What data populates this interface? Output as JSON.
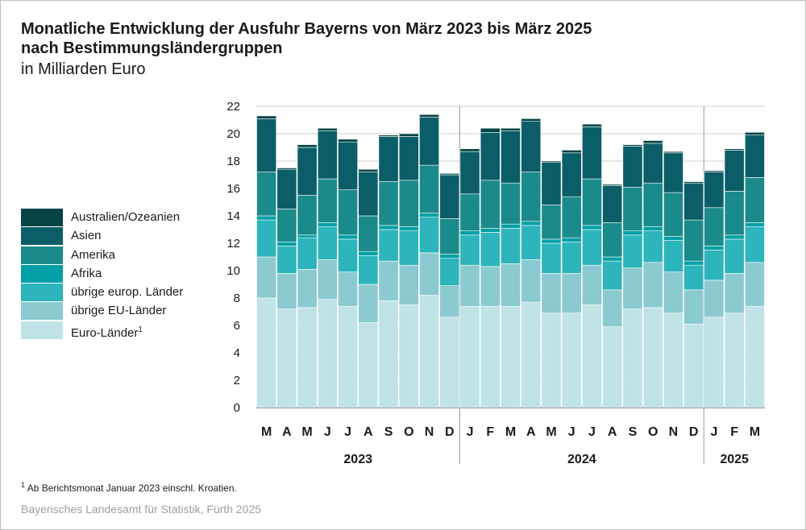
{
  "title_line1": "Monatliche Entwicklung der Ausfuhr Bayerns von März 2023 bis März 2025",
  "title_line2": "nach Bestimmungsländergruppen",
  "subtitle": "in Milliarden Euro",
  "footnote": {
    "marker": "1",
    "text": "Ab Berichtsmonat Januar 2023 einschl. Kroatien."
  },
  "source": "Bayerisches Landesamt für Statistik, Fürth 2025",
  "chart_data": {
    "type": "bar",
    "stacked": true,
    "ylim": [
      0,
      22
    ],
    "yticks": [
      "0",
      "2",
      "4",
      "6",
      "8",
      "10",
      "12",
      "14",
      "16",
      "18",
      "20",
      "22"
    ],
    "grid": true,
    "legend_position": "left",
    "categories": [
      "M",
      "A",
      "M",
      "J",
      "J",
      "A",
      "S",
      "O",
      "N",
      "D",
      "J",
      "F",
      "M",
      "A",
      "M",
      "J",
      "J",
      "A",
      "S",
      "O",
      "N",
      "D",
      "J",
      "F",
      "M"
    ],
    "year_groups": [
      {
        "label": "2023",
        "start": 0,
        "end": 9
      },
      {
        "label": "2024",
        "start": 10,
        "end": 21
      },
      {
        "label": "2025",
        "start": 22,
        "end": 24
      }
    ],
    "series": [
      {
        "name": "Euro-Länder",
        "superscript": "1",
        "color": "#bfe3e6",
        "values": [
          8.0,
          7.2,
          7.3,
          7.9,
          7.4,
          6.2,
          7.8,
          7.5,
          8.2,
          6.6,
          7.4,
          7.4,
          7.4,
          7.7,
          6.9,
          6.9,
          7.5,
          5.9,
          7.2,
          7.3,
          6.9,
          6.1,
          6.6,
          6.9,
          7.4
        ]
      },
      {
        "name": "übrige EU-Länder",
        "color": "#8bcad1",
        "values": [
          3.0,
          2.6,
          2.8,
          2.9,
          2.5,
          2.8,
          2.9,
          2.9,
          3.1,
          2.3,
          3.0,
          2.9,
          3.1,
          3.1,
          2.9,
          2.9,
          2.9,
          2.7,
          3.0,
          3.3,
          3.0,
          2.5,
          2.7,
          2.9,
          3.2
        ]
      },
      {
        "name": "übrige europ. Länder",
        "color": "#2db4bc",
        "values": [
          2.7,
          2.0,
          2.3,
          2.4,
          2.4,
          2.1,
          2.3,
          2.5,
          2.6,
          2.0,
          2.2,
          2.5,
          2.6,
          2.5,
          2.2,
          2.3,
          2.6,
          2.1,
          2.4,
          2.3,
          2.3,
          1.8,
          2.2,
          2.5,
          2.6
        ]
      },
      {
        "name": "Afrika",
        "color": "#00a0a6",
        "values": [
          0.3,
          0.3,
          0.2,
          0.3,
          0.3,
          0.3,
          0.3,
          0.3,
          0.3,
          0.3,
          0.3,
          0.3,
          0.3,
          0.3,
          0.3,
          0.3,
          0.3,
          0.3,
          0.3,
          0.3,
          0.3,
          0.3,
          0.3,
          0.3,
          0.3
        ]
      },
      {
        "name": "Amerika",
        "color": "#1b8a8a",
        "values": [
          3.2,
          2.4,
          2.9,
          3.2,
          3.3,
          2.6,
          3.2,
          3.4,
          3.5,
          2.6,
          2.7,
          3.5,
          3.0,
          3.6,
          2.5,
          3.0,
          3.4,
          2.5,
          3.2,
          3.2,
          3.2,
          3.0,
          2.8,
          3.2,
          3.3
        ]
      },
      {
        "name": "Asien",
        "color": "#0b5e68",
        "values": [
          3.9,
          2.9,
          3.5,
          3.5,
          3.5,
          3.2,
          3.3,
          3.2,
          3.5,
          3.2,
          3.1,
          3.5,
          3.8,
          3.7,
          3.1,
          3.2,
          3.8,
          2.7,
          3.0,
          2.9,
          2.9,
          2.7,
          2.6,
          3.0,
          3.1
        ]
      },
      {
        "name": "Australien/Ozeanien",
        "color": "#064445",
        "values": [
          0.2,
          0.1,
          0.2,
          0.2,
          0.2,
          0.2,
          0.1,
          0.2,
          0.2,
          0.1,
          0.2,
          0.3,
          0.2,
          0.2,
          0.1,
          0.2,
          0.2,
          0.1,
          0.1,
          0.2,
          0.1,
          0.1,
          0.1,
          0.1,
          0.2
        ]
      }
    ]
  }
}
